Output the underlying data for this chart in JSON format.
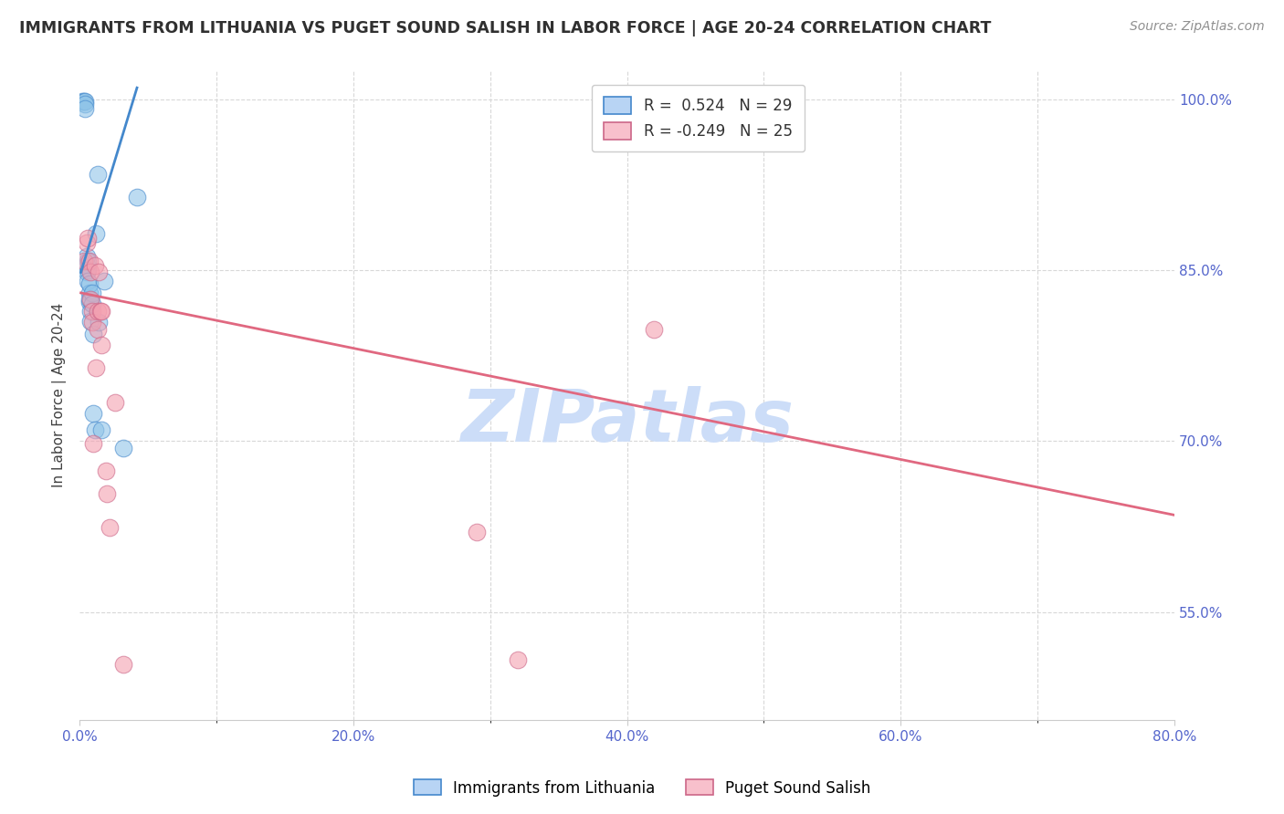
{
  "title": "IMMIGRANTS FROM LITHUANIA VS PUGET SOUND SALISH IN LABOR FORCE | AGE 20-24 CORRELATION CHART",
  "source": "Source: ZipAtlas.com",
  "ylabel": "In Labor Force | Age 20-24",
  "xlabel_ticks": [
    "0.0%",
    "",
    "",
    "",
    "",
    "20.0%",
    "",
    "",
    "",
    "",
    "40.0%",
    "",
    "",
    "",
    "",
    "60.0%",
    "",
    "",
    "",
    "",
    "80.0%"
  ],
  "xlabel_vals": [
    0.0,
    0.04,
    0.08,
    0.12,
    0.16,
    0.2,
    0.24,
    0.28,
    0.32,
    0.36,
    0.4,
    0.44,
    0.48,
    0.52,
    0.56,
    0.6,
    0.64,
    0.68,
    0.72,
    0.76,
    0.8
  ],
  "xlabel_labeled": [
    0.0,
    0.2,
    0.4,
    0.6,
    0.8
  ],
  "xlabel_labeled_str": [
    "0.0%",
    "20.0%",
    "40.0%",
    "60.0%",
    "80.0%"
  ],
  "ytick_labels": [
    "100.0%",
    "85.0%",
    "70.0%",
    "55.0%"
  ],
  "ytick_vals": [
    1.0,
    0.85,
    0.7,
    0.55
  ],
  "xmin": 0.0,
  "xmax": 0.8,
  "ymin": 0.455,
  "ymax": 1.025,
  "r_blue": 0.524,
  "n_blue": 29,
  "r_pink": -0.249,
  "n_pink": 25,
  "blue_scatter_x": [
    0.002,
    0.003,
    0.004,
    0.004,
    0.004,
    0.005,
    0.005,
    0.005,
    0.006,
    0.006,
    0.006,
    0.007,
    0.007,
    0.007,
    0.007,
    0.008,
    0.008,
    0.009,
    0.009,
    0.01,
    0.01,
    0.011,
    0.012,
    0.013,
    0.014,
    0.016,
    0.018,
    0.032,
    0.042
  ],
  "blue_scatter_y": [
    0.998,
    0.998,
    0.998,
    0.996,
    0.992,
    0.862,
    0.855,
    0.848,
    0.858,
    0.85,
    0.84,
    0.83,
    0.822,
    0.838,
    0.824,
    0.814,
    0.805,
    0.83,
    0.82,
    0.794,
    0.724,
    0.71,
    0.882,
    0.934,
    0.804,
    0.71,
    0.84,
    0.694,
    0.914
  ],
  "pink_scatter_x": [
    0.003,
    0.005,
    0.006,
    0.007,
    0.008,
    0.008,
    0.009,
    0.009,
    0.01,
    0.011,
    0.012,
    0.013,
    0.013,
    0.014,
    0.015,
    0.016,
    0.016,
    0.019,
    0.02,
    0.022,
    0.026,
    0.032,
    0.29,
    0.32,
    0.42
  ],
  "pink_scatter_y": [
    0.858,
    0.874,
    0.878,
    0.858,
    0.848,
    0.824,
    0.814,
    0.804,
    0.698,
    0.854,
    0.764,
    0.814,
    0.798,
    0.848,
    0.814,
    0.814,
    0.784,
    0.674,
    0.654,
    0.624,
    0.734,
    0.504,
    0.62,
    0.508,
    0.798
  ],
  "blue_line_x": [
    0.001,
    0.042
  ],
  "blue_line_y": [
    0.848,
    1.01
  ],
  "pink_line_x": [
    0.001,
    0.8
  ],
  "pink_line_y": [
    0.83,
    0.635
  ],
  "blue_color": "#90c4e8",
  "pink_color": "#f4a0b0",
  "blue_line_color": "#4488cc",
  "pink_line_color": "#e06880",
  "watermark_color": "#ccddf8",
  "grid_color": "#d8d8d8",
  "background_color": "#ffffff",
  "title_color": "#303030",
  "source_color": "#909090",
  "axis_label_color": "#404040",
  "tick_color": "#5566cc",
  "legend_blue_face": "#b8d4f4",
  "legend_blue_edge": "#4488cc",
  "legend_pink_face": "#f8c0cc",
  "legend_pink_edge": "#cc6688"
}
